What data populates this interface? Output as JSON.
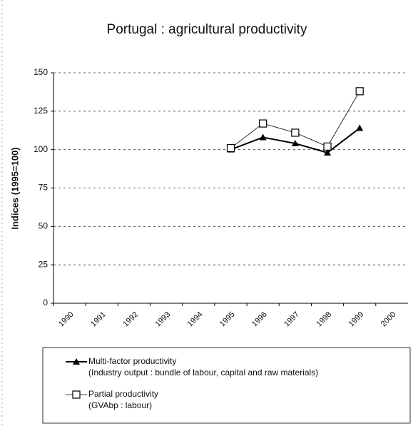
{
  "chart_data": {
    "type": "line",
    "title": "Portugal : agricultural productivity",
    "y_label": "Indices (1995=100)",
    "categories": [
      "1990",
      "1991",
      "1992",
      "1993",
      "1994",
      "1995",
      "1996",
      "1997",
      "1998",
      "1999",
      "2000"
    ],
    "series": [
      {
        "name": "Multi-factor productivity",
        "description": "(Industry output : bundle of labour, capital and raw materials)",
        "color": "#000000",
        "marker": "triangle",
        "values": [
          null,
          null,
          null,
          null,
          null,
          100,
          108,
          104,
          98,
          114,
          null
        ]
      },
      {
        "name": "Partial productivity",
        "description": "(GVAbp : labour)",
        "color": "#000000",
        "marker": "square",
        "values": [
          null,
          null,
          null,
          null,
          null,
          101,
          117,
          111,
          102,
          138,
          null
        ]
      }
    ],
    "ylim": [
      0,
      150
    ],
    "yticks": [
      0,
      25,
      50,
      75,
      100,
      125,
      150
    ],
    "grid": true
  }
}
